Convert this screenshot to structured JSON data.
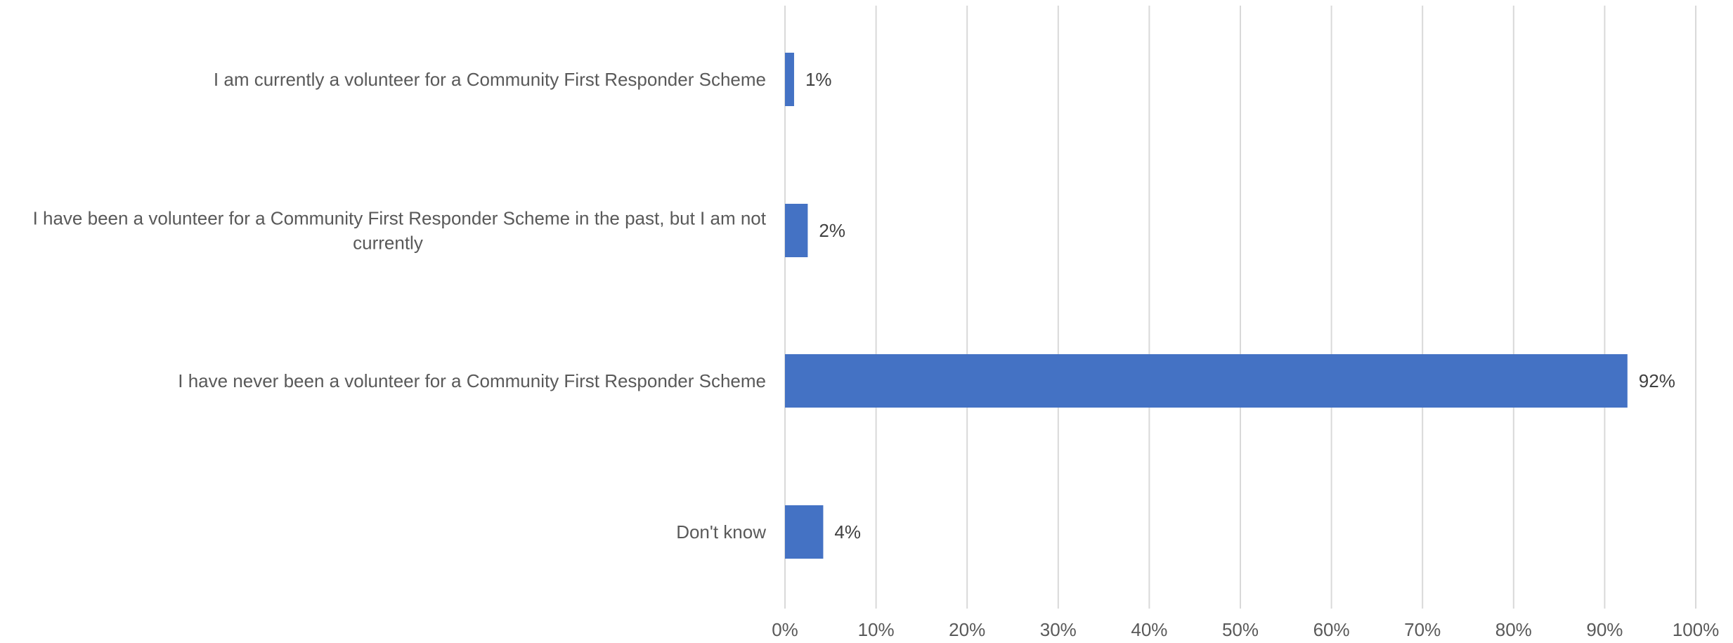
{
  "chart_data": {
    "type": "bar",
    "orientation": "horizontal",
    "categories": [
      "I am currently a volunteer for a Community First Responder Scheme",
      "I have been a volunteer for a Community First Responder Scheme in the past, but I am not currently",
      "I have never been a volunteer for a Community First Responder Scheme",
      "Don't know"
    ],
    "category_lines": [
      [
        "I am currently a volunteer for a Community First Responder Scheme"
      ],
      [
        "I have been a volunteer for a Community First Responder Scheme in the past, but I am not",
        "currently"
      ],
      [
        "I have never been a volunteer for a Community First Responder Scheme"
      ],
      [
        "Don't know"
      ]
    ],
    "values": [
      1,
      2.5,
      92.5,
      4.2
    ],
    "data_labels": [
      "1%",
      "2%",
      "92%",
      "4%"
    ],
    "xlim": [
      0,
      100
    ],
    "x_ticks": [
      0,
      10,
      20,
      30,
      40,
      50,
      60,
      70,
      80,
      90,
      100
    ],
    "x_tick_labels": [
      "0%",
      "10%",
      "20%",
      "30%",
      "40%",
      "50%",
      "60%",
      "70%",
      "80%",
      "90%",
      "100%"
    ],
    "grid": true,
    "legend": "none",
    "bar_color": "#4472c4",
    "title": "",
    "xlabel": "",
    "ylabel": ""
  }
}
